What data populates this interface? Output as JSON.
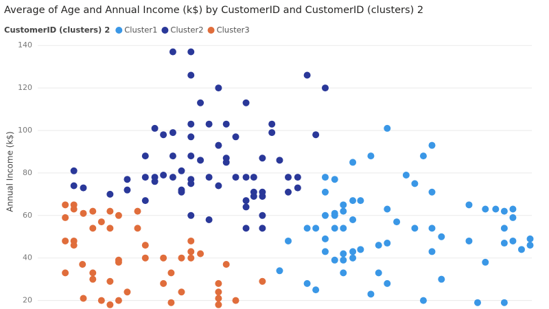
{
  "chart_data": {
    "type": "scatter",
    "title": "Average of Age and Annual Income (k$) by CustomerID and CustomerID (clusters) 2",
    "legend_title": "CustomerID (clusters) 2",
    "y_label": "Annual Income (k$)",
    "xlim": [
      15,
      72
    ],
    "ylim": [
      16,
      142
    ],
    "yticks": [
      20,
      40,
      60,
      80,
      100,
      120,
      140
    ],
    "grid": true,
    "series": [
      {
        "name": "Cluster1",
        "color": "#3a97e6",
        "x": [
          42.7,
          43.7,
          45.9,
          45.9,
          46.9,
          46.9,
          48,
          48,
          48,
          48,
          48,
          49.1,
          49.1,
          49.1,
          49.1,
          49.1,
          50.1,
          50.1,
          50.1,
          50.1,
          50.1,
          50.1,
          51.2,
          51.2,
          51.2,
          51.2,
          51.2,
          52.1,
          52.1,
          53.3,
          53.3,
          54.2,
          54.2,
          55.2,
          55.2,
          55.2,
          55.2,
          56.3,
          57.4,
          58.4,
          58.4,
          59.4,
          59.4,
          60.4,
          60.4,
          60.4,
          60.4,
          61.5,
          61.5,
          64.7,
          64.7,
          65.7,
          66.6,
          66.6,
          67.8,
          68.8,
          68.8,
          68.8,
          68.8,
          69.8,
          69.8,
          69.8,
          70.8,
          71.8,
          71.8
        ],
        "values": [
          34,
          48,
          54,
          28,
          54,
          25,
          78,
          71,
          60,
          49,
          43,
          77,
          61,
          60,
          54,
          39,
          65,
          62,
          54,
          42,
          39,
          33,
          85,
          67,
          58,
          43,
          40,
          67,
          44,
          88,
          23,
          46,
          33,
          101,
          63,
          47,
          28,
          57,
          79,
          75,
          54,
          88,
          20,
          93,
          71,
          54,
          43,
          50,
          30,
          65,
          48,
          19,
          63,
          38,
          63,
          62,
          54,
          47,
          19,
          63,
          59,
          48,
          44,
          49,
          46
        ]
      },
      {
        "name": "Cluster2",
        "color": "#2a3899",
        "x": [
          18.8,
          18.8,
          19.9,
          23,
          25,
          25,
          27.1,
          27.1,
          27.1,
          28.2,
          28.2,
          28.2,
          29.2,
          29.2,
          30.3,
          30.3,
          30.3,
          30.3,
          31.3,
          31.3,
          31.3,
          32.4,
          32.4,
          32.4,
          32.4,
          32.4,
          32.4,
          32.4,
          32.4,
          33.5,
          33.5,
          34.5,
          34.5,
          34.5,
          35.6,
          35.6,
          35.6,
          36.5,
          36.5,
          36.5,
          37.6,
          37.6,
          38.8,
          38.8,
          38.8,
          38.8,
          38.8,
          39.7,
          39.7,
          39.7,
          40.7,
          40.7,
          40.7,
          40.7,
          40.7,
          41.8,
          41.8,
          42.7,
          43.7,
          43.7,
          44.8,
          44.8,
          45.9,
          46.9,
          48
        ],
        "values": [
          81,
          74,
          73,
          70,
          77,
          72,
          88,
          78,
          67,
          101,
          78,
          76,
          98,
          79,
          99,
          88,
          78,
          137,
          81,
          72,
          71,
          137,
          126,
          103,
          97,
          88,
          77,
          75,
          60,
          113,
          86,
          103,
          78,
          58,
          120,
          93,
          74,
          103,
          87,
          85,
          97,
          78,
          113,
          78,
          67,
          64,
          54,
          78,
          71,
          69,
          87,
          71,
          69,
          60,
          54,
          103,
          99,
          86,
          78,
          71,
          78,
          73,
          126,
          98,
          120
        ]
      },
      {
        "name": "Cluster3",
        "color": "#e06d3b",
        "x": [
          17.8,
          17.8,
          17.8,
          17.8,
          18.8,
          18.8,
          18.8,
          18.8,
          19.9,
          19.8,
          19.9,
          21,
          21,
          21,
          21,
          22,
          22,
          23,
          23,
          23,
          23,
          24,
          24,
          24,
          24,
          25,
          26.2,
          26.2,
          27.1,
          27.1,
          29.2,
          29.2,
          30.1,
          30.1,
          31.3,
          31.3,
          32.4,
          32.4,
          32.4,
          33.5,
          35.6,
          35.6,
          35.6,
          35.6,
          36.5,
          37.6,
          40.7
        ],
        "values": [
          65,
          59,
          48,
          33,
          65,
          63,
          48,
          46,
          61,
          37,
          21,
          54,
          33,
          30,
          62,
          57,
          20,
          62,
          54,
          29,
          18,
          60,
          39,
          38,
          20,
          24,
          62,
          54,
          46,
          40,
          40,
          28,
          33,
          19,
          40,
          24,
          48,
          43,
          40,
          42,
          28,
          24,
          21,
          18,
          37,
          20,
          29
        ]
      }
    ]
  }
}
